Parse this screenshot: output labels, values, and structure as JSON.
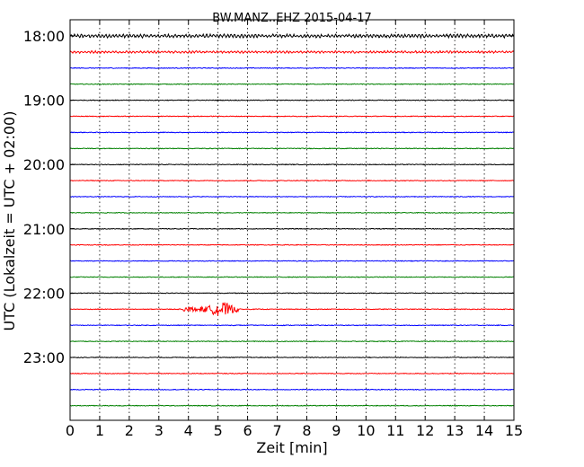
{
  "chart_data": {
    "type": "line",
    "title": "BW.MANZ..EHZ 2015-04-17",
    "xlabel": "Zeit  [min]",
    "ylabel": "UTC (Lokalzeit = UTC + 02:00)",
    "xlim": [
      0,
      15
    ],
    "x_ticks": [
      "0",
      "1",
      "2",
      "3",
      "4",
      "5",
      "6",
      "7",
      "8",
      "9",
      "10",
      "11",
      "12",
      "13",
      "14",
      "15"
    ],
    "y_ticks": [
      "18:00",
      "19:00",
      "20:00",
      "21:00",
      "22:00",
      "23:00"
    ],
    "grid": "vertical dotted lines at each minute",
    "trace_colors": [
      "#000000",
      "#ff0000",
      "#0000ff",
      "#008000"
    ],
    "traces": [
      {
        "start": "18:00",
        "amplitude": 0.9,
        "oscillating": true
      },
      {
        "start": "18:15",
        "amplitude": 0.6,
        "oscillating": true
      },
      {
        "start": "18:30",
        "amplitude": 0.4
      },
      {
        "start": "18:45",
        "amplitude": 0.4
      },
      {
        "start": "19:00",
        "amplitude": 0.4
      },
      {
        "start": "19:15",
        "amplitude": 0.4
      },
      {
        "start": "19:30",
        "amplitude": 0.4
      },
      {
        "start": "19:45",
        "amplitude": 0.4
      },
      {
        "start": "20:00",
        "amplitude": 0.4
      },
      {
        "start": "20:15",
        "amplitude": 0.4
      },
      {
        "start": "20:30",
        "amplitude": 0.4
      },
      {
        "start": "20:45",
        "amplitude": 0.4
      },
      {
        "start": "21:00",
        "amplitude": 0.4
      },
      {
        "start": "21:15",
        "amplitude": 0.4
      },
      {
        "start": "21:30",
        "amplitude": 0.4
      },
      {
        "start": "21:45",
        "amplitude": 0.4
      },
      {
        "start": "22:00",
        "amplitude": 0.4
      },
      {
        "start": "22:15",
        "amplitude": 0.4,
        "event": {
          "start_min": 3.8,
          "end_min": 5.7,
          "peak_min": 5.1,
          "peak_amplitude": 7
        }
      },
      {
        "start": "22:30",
        "amplitude": 0.4
      },
      {
        "start": "22:45",
        "amplitude": 0.4
      },
      {
        "start": "23:00",
        "amplitude": 0.4
      },
      {
        "start": "23:15",
        "amplitude": 0.4
      },
      {
        "start": "23:30",
        "amplitude": 0.4
      },
      {
        "start": "23:45",
        "amplitude": 0.4
      }
    ]
  }
}
